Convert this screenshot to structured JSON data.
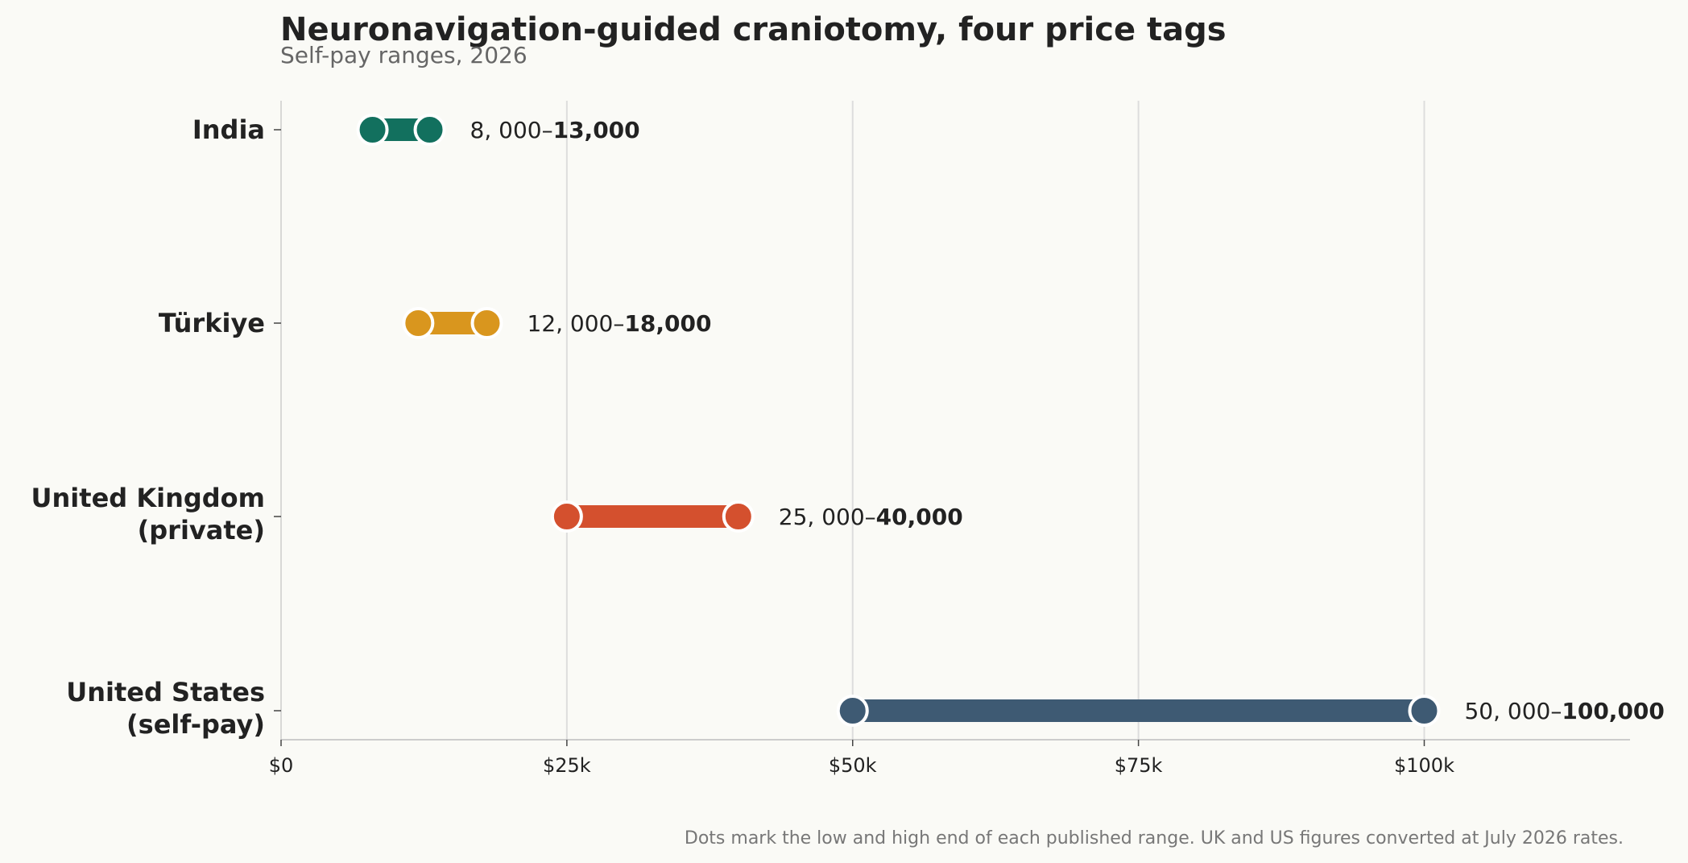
{
  "chart_data": {
    "type": "dumbbell",
    "title": "Neuronavigation-guided craniotomy, four price tags",
    "subtitle": "Self-pay ranges, 2026",
    "footnote": "Dots mark the low and high end of each published range. UK and US figures converted at July 2026 rates.",
    "xlim": [
      0,
      118000
    ],
    "x_ticks": [
      0,
      25000,
      50000,
      75000,
      100000
    ],
    "x_tick_labels": [
      "$0",
      "$25k",
      "$50k",
      "$75k",
      "$100k"
    ],
    "grid": "vertical",
    "categories": [
      {
        "lines": [
          "India"
        ],
        "low": 8000,
        "high": 13000,
        "low_text": "8, 000–",
        "high_text": "13,000",
        "color": "#12705e"
      },
      {
        "lines": [
          "Türkiye"
        ],
        "low": 12000,
        "high": 18000,
        "low_text": "12, 000–",
        "high_text": "18,000",
        "color": "#d9961e"
      },
      {
        "lines": [
          "United Kingdom",
          "(private)"
        ],
        "low": 25000,
        "high": 40000,
        "low_text": "25, 000–",
        "high_text": "40,000",
        "color": "#d4502e"
      },
      {
        "lines": [
          "United States",
          "(self-pay)"
        ],
        "low": 50000,
        "high": 100000,
        "low_text": "50, 000–",
        "high_text": "100,000",
        "color": "#3e5a73"
      }
    ]
  }
}
